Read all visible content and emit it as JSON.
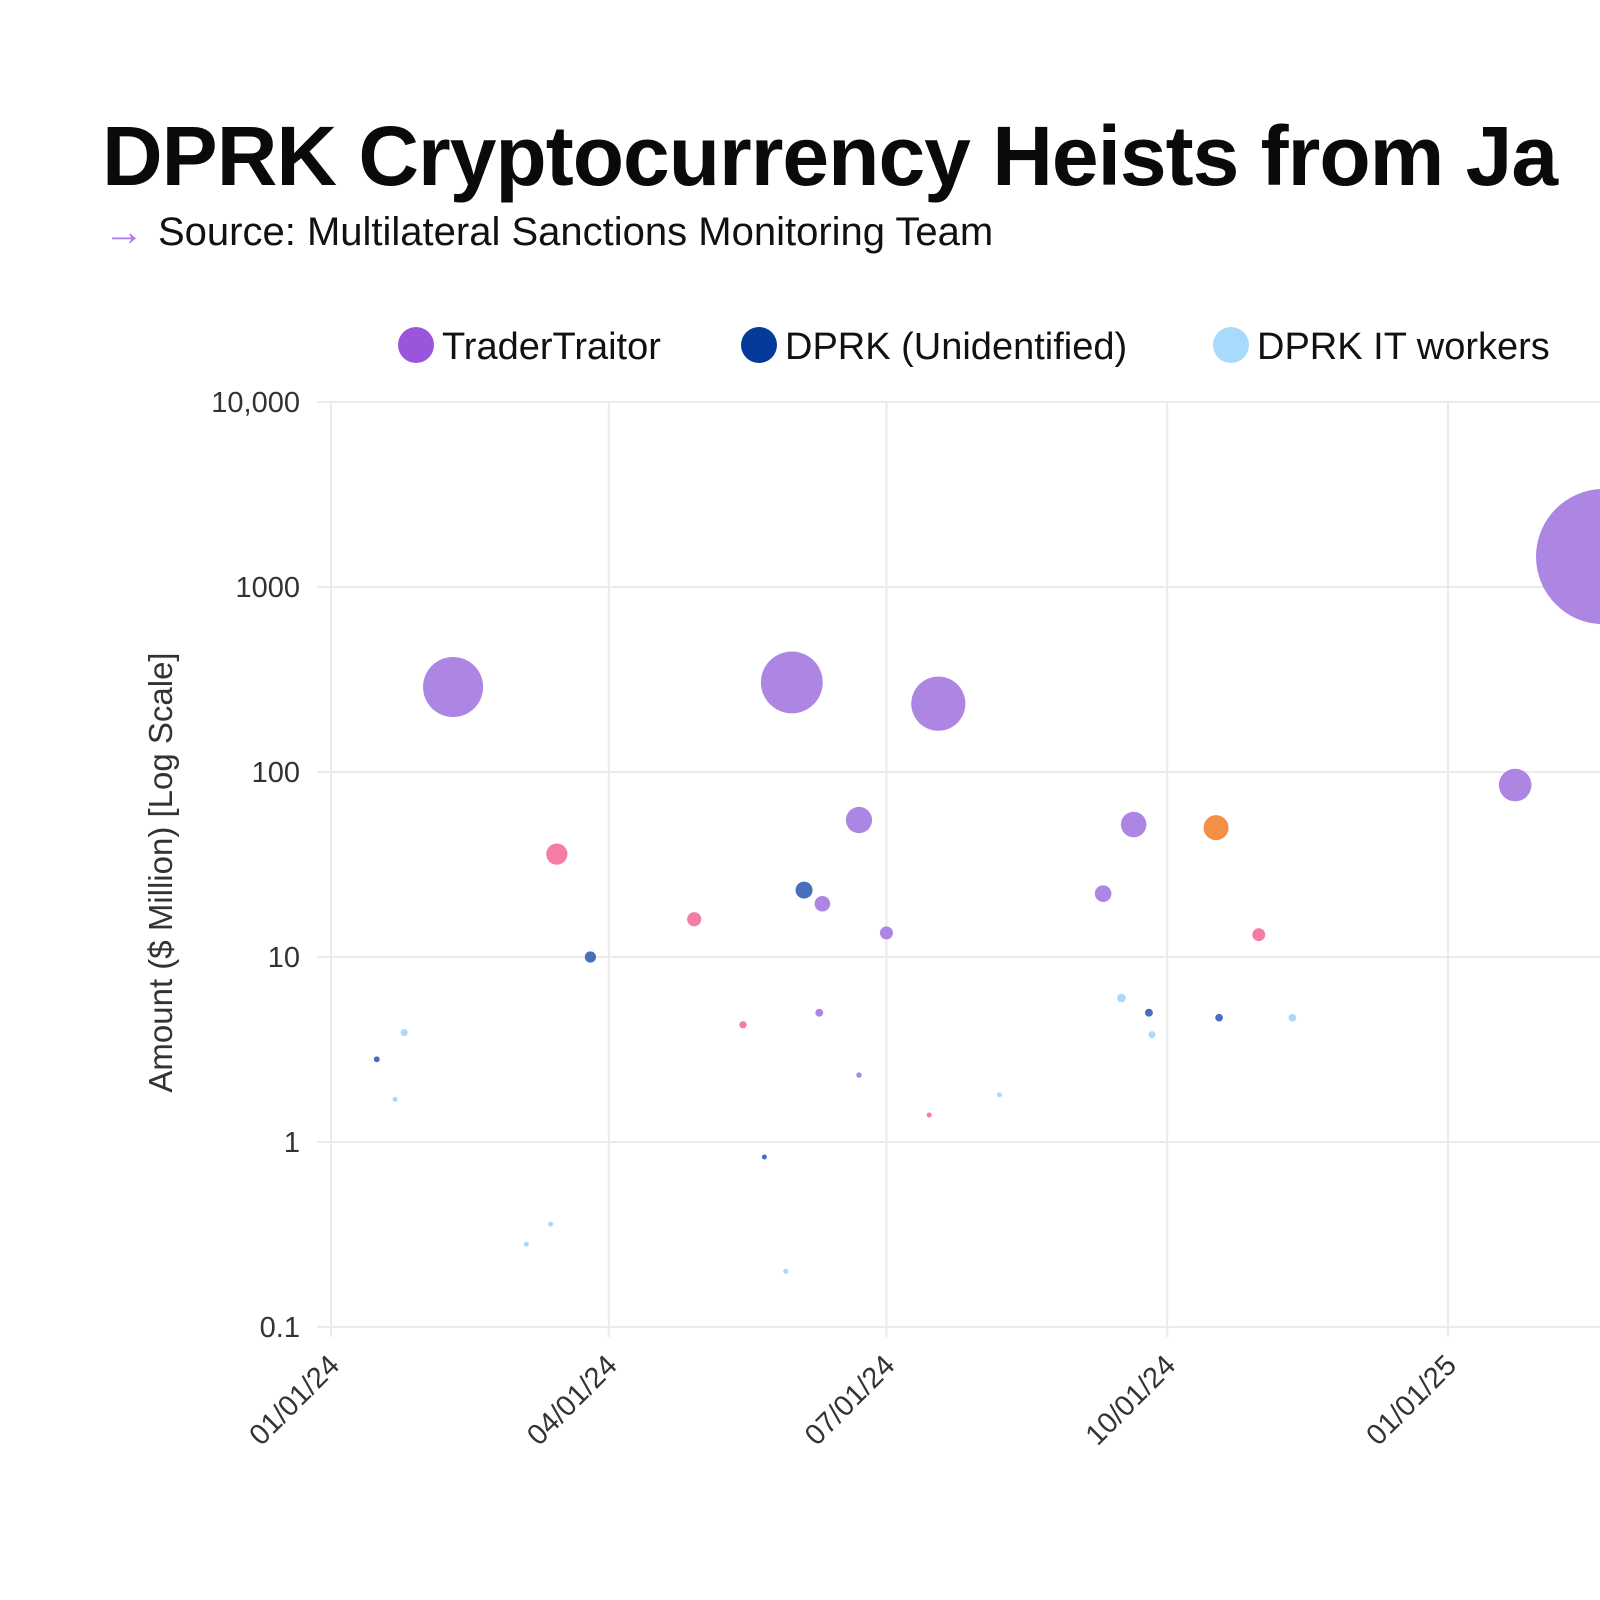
{
  "chart_data": {
    "type": "scatter",
    "title": "DPRK Cryptocurrency Heists from Ja",
    "subtitle": "Source: Multilateral Sanctions Monitoring Team",
    "ylabel": "Amount ($ Million) [Log Scale]",
    "xlabel": "",
    "y_scale": "log",
    "ylim": [
      0.1,
      10000
    ],
    "y_ticks": [
      "10,000",
      "1000",
      "100",
      "10",
      "1",
      "0.1"
    ],
    "y_tick_values": [
      10000,
      1000,
      100,
      10,
      1,
      0.1
    ],
    "x_ticks": [
      "01/01/24",
      "04/01/24",
      "07/01/24",
      "10/01/24",
      "01/01/25"
    ],
    "x_tick_values": [
      "2024-01-01",
      "2024-04-01",
      "2024-07-01",
      "2024-10-01",
      "2025-01-01"
    ],
    "grid": true,
    "legend_position": "top",
    "bubble_size": "proportional to amount",
    "series": [
      {
        "name": "TraderTraitor",
        "color": "#a97ee2",
        "legend_color": "#9b55dc",
        "points": [
          [
            "2024-02-10",
            288
          ],
          [
            "2024-05-31",
            305
          ],
          [
            "2024-07-18",
            234
          ],
          [
            "2024-06-22",
            55
          ],
          [
            "2024-06-10",
            19.4
          ],
          [
            "2024-07-01",
            13.5
          ],
          [
            "2024-06-09",
            5.0
          ],
          [
            "2024-06-22",
            2.3
          ],
          [
            "2024-09-20",
            52
          ],
          [
            "2024-09-10",
            22
          ],
          [
            "2025-01-23",
            85
          ],
          [
            "2025-02-21",
            1460
          ]
        ]
      },
      {
        "name": "DPRK (Unidentified)",
        "color": "#3b68b8",
        "legend_color": "#063a9a",
        "points": [
          [
            "2024-01-16",
            2.8
          ],
          [
            "2024-03-26",
            10
          ],
          [
            "2024-06-04",
            23
          ],
          [
            "2024-05-22",
            0.83
          ],
          [
            "2024-09-25",
            5.0
          ],
          [
            "2024-10-18",
            4.7
          ]
        ]
      },
      {
        "name": "DPRK IT workers",
        "color": "#a6d6fb",
        "legend_color": "#a9d9fb",
        "points": [
          [
            "2024-01-25",
            3.9
          ],
          [
            "2024-01-22",
            1.7
          ],
          [
            "2024-03-05",
            0.28
          ],
          [
            "2024-03-13",
            0.36
          ],
          [
            "2024-05-29",
            0.2
          ],
          [
            "2024-08-07",
            1.8
          ],
          [
            "2024-09-16",
            6.0
          ],
          [
            "2024-09-26",
            3.8
          ],
          [
            "2024-11-11",
            4.7
          ]
        ]
      },
      {
        "color": "#f2769e",
        "points": [
          [
            "2024-03-15",
            36
          ],
          [
            "2024-04-29",
            16
          ],
          [
            "2024-05-15",
            4.3
          ],
          [
            "2024-07-15",
            1.4
          ],
          [
            "2024-10-31",
            13.2
          ]
        ]
      },
      {
        "color": "#f38a3c",
        "points": [
          [
            "2024-10-17",
            50
          ]
        ]
      }
    ]
  }
}
